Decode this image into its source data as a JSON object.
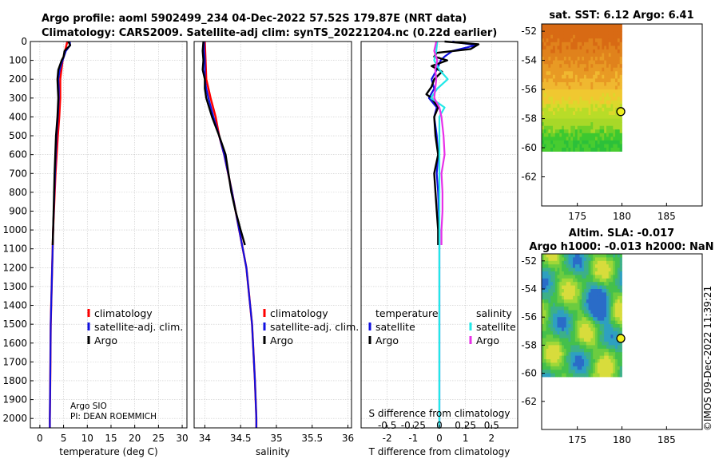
{
  "header": {
    "line1": "Argo profile: aoml 5902499_234 04-Dec-2022 57.52S 179.87E (NRT data)",
    "line2": "Climatology: CARS2009. Satellite-adj clim: synTS_20221204.nc (0.22d earlier)"
  },
  "credit": {
    "argo_line1": "Argo SIO",
    "argo_line2": "PI: DEAN ROEMMICH",
    "imos": "©IMOS 09-Dec-2022 11:39:21"
  },
  "colors": {
    "red": "#ff0000",
    "blue": "#1010e0",
    "black": "#000000",
    "cyan": "#22e8e8",
    "magenta": "#e830e8"
  },
  "chart_data": [
    {
      "id": "temperature",
      "type": "line",
      "xlabel": "temperature (deg C)",
      "ylabel": "",
      "xlim": [
        -2,
        31
      ],
      "ylim": [
        2050,
        0
      ],
      "xticks": [
        0,
        5,
        10,
        15,
        20,
        25,
        30
      ],
      "xtick_labels": [
        "0",
        "5",
        "10",
        "15",
        "20",
        "25",
        "30"
      ],
      "yticks": [
        0,
        100,
        200,
        300,
        400,
        500,
        600,
        700,
        800,
        900,
        1000,
        1100,
        1200,
        1300,
        1400,
        1500,
        1600,
        1700,
        1800,
        1900,
        2000
      ],
      "ytick_labels": [
        "0",
        "100",
        "200",
        "300",
        "400",
        "500",
        "600",
        "700",
        "800",
        "900",
        "1000",
        "1100",
        "1200",
        "1300",
        "1400",
        "1500",
        "1600",
        "1700",
        "1800",
        "1900",
        "2000"
      ],
      "legend": [
        "climatology",
        "satellite-adj. clim.",
        "Argo"
      ],
      "series": [
        {
          "name": "climatology",
          "color": "red",
          "depth": [
            0,
            50,
            100,
            200,
            300,
            400,
            500,
            700,
            1000,
            1200,
            1500,
            1800,
            2000,
            2050
          ],
          "values": [
            5.8,
            5.3,
            4.8,
            4.3,
            4.3,
            4.1,
            3.8,
            3.3,
            2.8,
            2.6,
            2.3,
            2.2,
            2.1,
            2.1
          ]
        },
        {
          "name": "satellite-adj. clim.",
          "color": "blue",
          "depth": [
            0,
            20,
            50,
            100,
            150,
            200,
            250,
            300,
            400,
            500,
            700,
            1000,
            1200,
            1500,
            1800,
            2000,
            2050
          ],
          "values": [
            6.3,
            6.4,
            5.5,
            4.8,
            4.2,
            3.9,
            4.0,
            4.0,
            3.8,
            3.5,
            3.2,
            2.8,
            2.6,
            2.3,
            2.2,
            2.1,
            2.1
          ]
        },
        {
          "name": "Argo",
          "color": "black",
          "depth": [
            0,
            20,
            50,
            80,
            100,
            150,
            200,
            250,
            300,
            400,
            500,
            700,
            900,
            1000,
            1080
          ],
          "values": [
            6.0,
            6.4,
            5.2,
            5.0,
            4.6,
            3.9,
            3.7,
            3.8,
            3.9,
            3.7,
            3.4,
            3.1,
            2.9,
            2.8,
            2.7
          ]
        }
      ]
    },
    {
      "id": "salinity",
      "type": "line",
      "xlabel": "salinity",
      "ylabel": "",
      "xlim": [
        33.85,
        36.05
      ],
      "ylim": [
        2050,
        0
      ],
      "xticks": [
        34,
        34.5,
        35,
        35.5,
        36
      ],
      "xtick_labels": [
        "34",
        "34.5",
        "35",
        "35.5",
        "36"
      ],
      "legend": [
        "climatology",
        "satellite-adj. clim.",
        "Argo"
      ],
      "series": [
        {
          "name": "climatology",
          "color": "red",
          "depth": [
            0,
            100,
            200,
            300,
            400,
            500,
            600,
            800,
            1000,
            1200,
            1500,
            1800,
            2000,
            2050
          ],
          "values": [
            34.0,
            34.01,
            34.02,
            34.08,
            34.15,
            34.2,
            34.27,
            34.38,
            34.48,
            34.58,
            34.66,
            34.7,
            34.72,
            34.72
          ]
        },
        {
          "name": "satellite-adj. clim.",
          "color": "blue",
          "depth": [
            0,
            50,
            100,
            200,
            250,
            300,
            400,
            500,
            600,
            800,
            1000,
            1200,
            1500,
            1800,
            2000,
            2050
          ],
          "values": [
            33.99,
            33.99,
            34.0,
            34.0,
            34.02,
            34.05,
            34.12,
            34.2,
            34.27,
            34.38,
            34.48,
            34.58,
            34.66,
            34.7,
            34.72,
            34.72
          ]
        },
        {
          "name": "Argo",
          "color": "black",
          "depth": [
            0,
            50,
            100,
            150,
            200,
            250,
            300,
            350,
            400,
            500,
            600,
            700,
            800,
            900,
            1000,
            1080
          ],
          "values": [
            33.98,
            33.97,
            33.98,
            33.97,
            34.0,
            34.0,
            34.02,
            34.06,
            34.1,
            34.2,
            34.29,
            34.33,
            34.37,
            34.43,
            34.5,
            34.56
          ]
        }
      ]
    },
    {
      "id": "differences",
      "type": "line",
      "xlabel": "T difference from climatology",
      "xlabel_top": "S difference from climatology",
      "xlim": [
        -3,
        3
      ],
      "ylim": [
        2050,
        0
      ],
      "xticks": [
        -2,
        -1,
        0,
        1,
        2
      ],
      "xtick_labels": [
        "-2",
        "-1",
        "0",
        "1",
        "2"
      ],
      "xticks_top_labels": [
        "-0.5",
        "-0.25",
        "0",
        "0.25",
        "0.5"
      ],
      "legend_temperature_title": "temperature",
      "legend_salinity_title": "salinity",
      "legend_temperature": [
        "satellite",
        "Argo"
      ],
      "legend_salinity": [
        "satellite",
        "Argo"
      ],
      "series": [
        {
          "name": "T satellite",
          "color": "blue",
          "depth": [
            0,
            20,
            50,
            80,
            100,
            150,
            200,
            250,
            300,
            350,
            400,
            500,
            600,
            700,
            800,
            1000,
            1200,
            1500,
            2000,
            2050
          ],
          "values": [
            0.5,
            1.4,
            0.5,
            0.2,
            0.05,
            -0.1,
            -0.3,
            -0.2,
            -0.4,
            -0.1,
            -0.2,
            -0.1,
            -0.05,
            -0.1,
            -0.05,
            0.0,
            0.0,
            0.0,
            0.0,
            0.0
          ]
        },
        {
          "name": "T Argo",
          "color": "black",
          "depth": [
            0,
            15,
            40,
            60,
            80,
            100,
            130,
            160,
            200,
            240,
            280,
            300,
            350,
            400,
            500,
            600,
            700,
            800,
            900,
            1000,
            1080
          ],
          "values": [
            0.2,
            1.5,
            1.2,
            -0.1,
            -0.2,
            0.3,
            -0.3,
            0.1,
            -0.2,
            -0.3,
            -0.5,
            -0.3,
            -0.05,
            -0.2,
            -0.15,
            -0.05,
            -0.2,
            -0.15,
            -0.1,
            -0.05,
            -0.05
          ]
        },
        {
          "name": "S satellite",
          "color": "cyan",
          "depth": [
            0,
            50,
            100,
            150,
            200,
            250,
            300,
            350,
            400,
            500,
            600,
            800,
            1000,
            1200,
            1500,
            2000,
            2050
          ],
          "values": [
            -0.02,
            -0.03,
            -0.05,
            0.0,
            0.08,
            -0.02,
            -0.08,
            0.05,
            0.0,
            0.0,
            0.0,
            0.0,
            0.0,
            0.0,
            0.0,
            0.0,
            0.0
          ]
        },
        {
          "name": "S Argo",
          "color": "magenta",
          "depth": [
            0,
            50,
            100,
            150,
            200,
            250,
            300,
            350,
            400,
            500,
            600,
            700,
            800,
            900,
            1000,
            1080
          ],
          "values": [
            -0.03,
            -0.05,
            -0.02,
            -0.04,
            -0.03,
            -0.04,
            -0.05,
            0.0,
            0.02,
            0.04,
            0.05,
            0.02,
            0.03,
            0.03,
            0.02,
            0.02
          ]
        }
      ]
    },
    {
      "id": "sst_map",
      "type": "heatmap",
      "title": "sat. SST: 6.12 Argo: 6.41",
      "xlim": [
        171,
        189
      ],
      "ylim": [
        -64,
        -51.5
      ],
      "xticks": [
        175,
        180,
        185
      ],
      "xtick_labels": [
        "175",
        "180",
        "185"
      ],
      "yticks": [
        -52,
        -54,
        -56,
        -58,
        -60,
        -62
      ],
      "ytick_labels": [
        "-52",
        "-54",
        "-56",
        "-58",
        "-60",
        "-62"
      ],
      "data_extent": {
        "lon": [
          171,
          180
        ],
        "lat": [
          -60.2,
          -51.5
        ]
      },
      "argo_position": {
        "lon": 179.87,
        "lat": -57.52
      }
    },
    {
      "id": "sla_map",
      "type": "heatmap",
      "title_line1": "Altim. SLA: -0.017",
      "title_line2": "Argo h1000: -0.013 h2000: NaN",
      "xlim": [
        171,
        189
      ],
      "ylim": [
        -64,
        -51.5
      ],
      "xticks": [
        175,
        180,
        185
      ],
      "xtick_labels": [
        "175",
        "180",
        "185"
      ],
      "yticks": [
        -52,
        -54,
        -56,
        -58,
        -60,
        -62
      ],
      "ytick_labels": [
        "-52",
        "-54",
        "-56",
        "-58",
        "-60",
        "-62"
      ],
      "data_extent": {
        "lon": [
          171,
          180
        ],
        "lat": [
          -60.2,
          -51.5
        ]
      },
      "argo_position": {
        "lon": 179.87,
        "lat": -57.52
      }
    }
  ]
}
